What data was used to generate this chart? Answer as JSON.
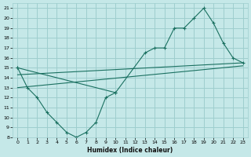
{
  "xlabel": "Humidex (Indice chaleur)",
  "bg_color": "#c5e8e8",
  "grid_color": "#9ecece",
  "line_color": "#1a7060",
  "xlim": [
    -0.5,
    23.5
  ],
  "ylim": [
    8,
    21.5
  ],
  "xticks": [
    0,
    1,
    2,
    3,
    4,
    5,
    6,
    7,
    8,
    9,
    10,
    11,
    12,
    13,
    14,
    15,
    16,
    17,
    18,
    19,
    20,
    21,
    22,
    23
  ],
  "yticks": [
    8,
    9,
    10,
    11,
    12,
    13,
    14,
    15,
    16,
    17,
    18,
    19,
    20,
    21
  ],
  "lower_x": [
    0,
    1,
    2,
    3,
    4,
    5,
    6,
    7,
    8,
    9,
    10
  ],
  "lower_y": [
    15,
    13,
    12,
    10.5,
    9.5,
    8.5,
    8,
    8.5,
    9.5,
    12,
    12.5
  ],
  "upper_x": [
    0,
    10,
    13,
    14,
    15,
    16,
    17,
    18,
    19,
    20,
    21,
    22,
    23
  ],
  "upper_y": [
    15,
    12.5,
    16.5,
    17,
    17,
    19,
    19,
    20,
    21,
    19.5,
    17.5,
    16,
    15.5
  ],
  "trend1_x": [
    0,
    23
  ],
  "trend1_y": [
    13,
    15.2
  ],
  "trend2_x": [
    0,
    23
  ],
  "trend2_y": [
    14.3,
    15.5
  ]
}
